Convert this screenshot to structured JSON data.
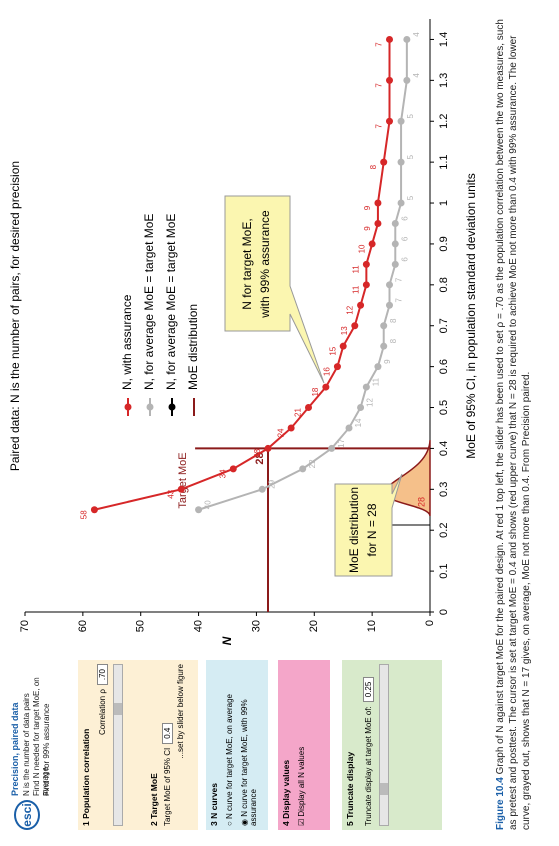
{
  "chart_data": {
    "type": "line",
    "title": "Paired data: N is the number of pairs, for desired precision",
    "x_label": "MoE of 95% CI, in population standard deviation units",
    "y_label": "N",
    "x": [
      0.25,
      0.3,
      0.35,
      0.4,
      0.45,
      0.5,
      0.55,
      0.6,
      0.65,
      0.7,
      0.75,
      0.8,
      0.85,
      0.9,
      0.95,
      1.0,
      1.1,
      1.2,
      1.3,
      1.4
    ],
    "series": [
      {
        "name": "N, with assurance",
        "color": "#d62728",
        "values": [
          58,
          43,
          34,
          28,
          24,
          21,
          18,
          16,
          15,
          13,
          12,
          11,
          11,
          10,
          9,
          9,
          8,
          7,
          7,
          7
        ]
      },
      {
        "name": "N, for average MoE = target MoE",
        "color": "#b4b4b4",
        "values": [
          40,
          29,
          22,
          17,
          14,
          12,
          11,
          9,
          8,
          8,
          7,
          7,
          6,
          6,
          6,
          5,
          5,
          5,
          4,
          4
        ]
      }
    ],
    "extra_legend": [
      {
        "name": "N, for average MoE = target MoE",
        "color": "#000000"
      },
      {
        "name": "MoE distribution",
        "color": "#8b1a1a"
      }
    ],
    "xlim": [
      0,
      1.45
    ],
    "ylim": [
      0,
      70
    ],
    "xticks": [
      0,
      0.1,
      0.2,
      0.3,
      0.4,
      0.5,
      0.6,
      0.7,
      0.8,
      0.9,
      1,
      1.1,
      1.2,
      1.3,
      1.4
    ],
    "yticks": [
      0,
      10,
      20,
      30,
      40,
      50,
      60,
      70
    ],
    "grid": false,
    "target": {
      "moe": 0.4,
      "label": "Target MoE",
      "n": 28,
      "color": "#8b1a1a"
    },
    "distribution_label": "28",
    "callouts": [
      [
        "N for target MoE,",
        "with 99% assurance"
      ],
      [
        "MoE distribution",
        "for N = 28"
      ]
    ]
  },
  "panel": {
    "logo": "esci",
    "title": "Precision, paired data",
    "lines": [
      "N is the number of data pairs",
      "Find N needed for target MoE, on average",
      "Find N for 99% assurance"
    ],
    "s1": {
      "head": "1 Population correlation",
      "label": "Correlation ρ",
      "value": ".70"
    },
    "s2": {
      "head": "2 Target MoE",
      "label": "Target MoE of 95% CI",
      "value": "0.4",
      "note": "...set by slider below figure"
    },
    "s3": {
      "head": "3 N curves",
      "opt1": "N curve for target MoE, on average",
      "opt2": "N curve for target MoE, with 99% assurance"
    },
    "s4": {
      "head": "4 Display values",
      "opt": "Display all N values"
    },
    "s5": {
      "head": "5 Truncate display",
      "label": "Truncate display at target MoE of:",
      "value": "0.25"
    }
  },
  "caption": {
    "label": "Figure 10.4",
    "text": "Graph of N against target MoE for the paired design. At red 1 top left, the slider has been used to set ρ = .70 as the population correlation between the two measures, such as pretest and posttest. The cursor is set at target MoE = 0.4 and shows (red upper curve) that N = 28 is required to achieve MoE not more than 0.4 with 99% assurance. The lower curve, grayed out, shows that N = 17 gives, on average, MoE not more than 0.4. From Precision paired."
  }
}
